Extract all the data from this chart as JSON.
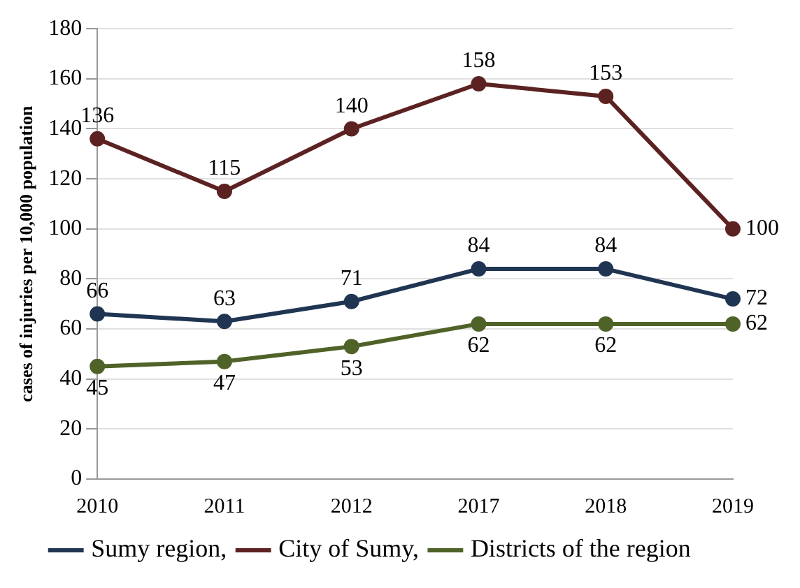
{
  "chart_data": {
    "type": "line",
    "ylabel": "cases of injuries per 10,000 population",
    "categories": [
      "2010",
      "2011",
      "2012",
      "2017",
      "2018",
      "2019"
    ],
    "series": [
      {
        "name": "Sumy region,",
        "color": "#1f3552",
        "values": [
          66,
          63,
          71,
          84,
          84,
          72
        ]
      },
      {
        "name": "City of Sumy,",
        "color": "#5c2222",
        "values": [
          136,
          115,
          140,
          158,
          153,
          100
        ]
      },
      {
        "name": "Districts of the region",
        "color": "#4f6228",
        "values": [
          45,
          47,
          53,
          62,
          62,
          62
        ]
      }
    ],
    "ylim": [
      0,
      180
    ],
    "yticks": [
      0,
      20,
      40,
      60,
      80,
      100,
      120,
      140,
      160,
      180
    ],
    "grid": "y",
    "legend": "bottom",
    "marker": "circle",
    "line_style": "solid",
    "data_labels": true
  }
}
